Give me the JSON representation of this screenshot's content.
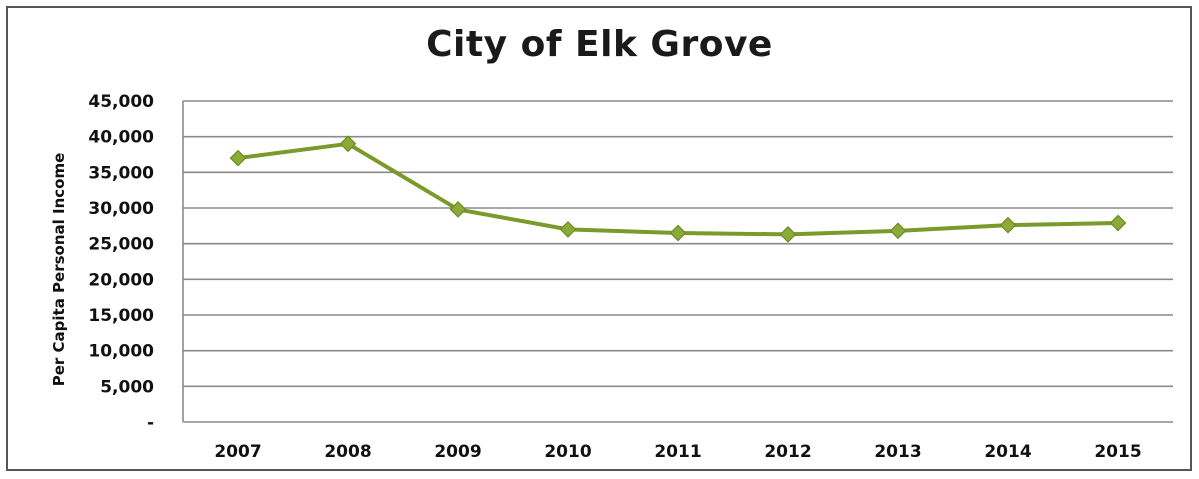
{
  "chart_data": {
    "type": "line",
    "title": "City of Elk Grove",
    "xlabel": "",
    "ylabel": "Per Capita Personal Income",
    "categories": [
      "2007",
      "2008",
      "2009",
      "2010",
      "2011",
      "2012",
      "2013",
      "2014",
      "2015"
    ],
    "series": [
      {
        "values": [
          37000,
          39000,
          29800,
          27000,
          26500,
          26300,
          26800,
          27600,
          27900
        ],
        "color": "#7a9a2c"
      }
    ],
    "ylim": [
      0,
      45000
    ],
    "yticks": [
      0,
      5000,
      10000,
      15000,
      20000,
      25000,
      30000,
      35000,
      40000,
      45000
    ],
    "ytick_labels": [
      "-",
      "5,000",
      "10,000",
      "15,000",
      "20,000",
      "25,000",
      "30,000",
      "35,000",
      "40,000",
      "45,000"
    ],
    "grid": true,
    "legend": "none",
    "marker": "diamond"
  }
}
